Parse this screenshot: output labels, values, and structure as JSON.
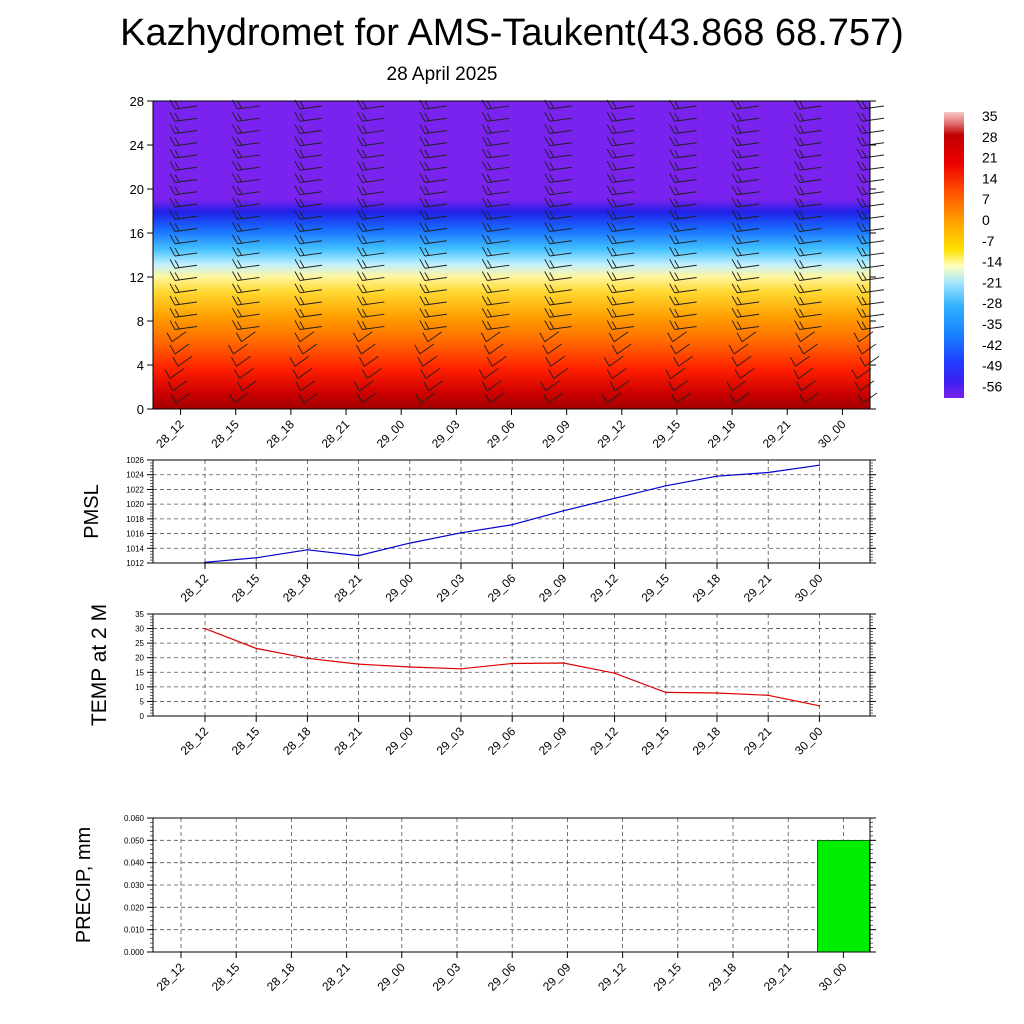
{
  "header": {
    "title": "Kazhydromet for AMS-Taukent(43.868 68.757)",
    "subtitle": "28 April 2025"
  },
  "colors": {
    "pmsl_line": "#0000cc",
    "temp_line": "#dd0000",
    "precip_bar": "#00ee00"
  },
  "chart_data": [
    {
      "type": "heatmap",
      "title": "",
      "xlabel": "",
      "ylabel": "",
      "x": [
        "28_12",
        "28_15",
        "28_18",
        "28_21",
        "29_00",
        "29_03",
        "29_06",
        "29_09",
        "29_12",
        "29_15",
        "29_18",
        "29_21",
        "30_00"
      ],
      "ylim": [
        0,
        28
      ],
      "y_ticks": [
        0,
        4,
        8,
        12,
        16,
        20,
        24,
        28
      ],
      "field": "temperature with wind barbs",
      "colorbar_ticks": [
        "35",
        "28",
        "21",
        "14",
        "7",
        "0",
        "-7",
        "-14",
        "-21",
        "-28",
        "-35",
        "-42",
        "-49",
        "-56"
      ],
      "approx_profile": [
        {
          "level": 0,
          "value": 28
        },
        {
          "level": 4,
          "value": 22
        },
        {
          "level": 8,
          "value": 10
        },
        {
          "level": 12,
          "value": -10
        },
        {
          "level": 14,
          "value": -20
        },
        {
          "level": 16,
          "value": -35
        },
        {
          "level": 18,
          "value": -50
        },
        {
          "level": 20,
          "value": -58
        },
        {
          "level": 28,
          "value": -58
        }
      ]
    },
    {
      "type": "line",
      "ylabel": "PMSL",
      "x": [
        "28_12",
        "28_15",
        "28_18",
        "28_21",
        "29_00",
        "29_03",
        "29_06",
        "29_09",
        "29_12",
        "29_15",
        "29_18",
        "29_21",
        "30_00"
      ],
      "ylim": [
        1012,
        1026
      ],
      "y_ticks": [
        1012,
        1014,
        1016,
        1018,
        1020,
        1022,
        1024,
        1026
      ],
      "grid": true,
      "series": [
        {
          "values": [
            1012.1,
            1012.7,
            1013.8,
            1013.0,
            1014.7,
            1016.1,
            1017.2,
            1019.1,
            1020.8,
            1022.5,
            1023.8,
            1024.3,
            1025.3
          ]
        }
      ]
    },
    {
      "type": "line",
      "ylabel": "TEMP at 2 M",
      "x": [
        "28_12",
        "28_15",
        "28_18",
        "28_21",
        "29_00",
        "29_03",
        "29_06",
        "29_09",
        "29_12",
        "29_15",
        "29_18",
        "29_21",
        "30_00"
      ],
      "ylim": [
        0,
        35
      ],
      "y_ticks": [
        0,
        5,
        10,
        15,
        20,
        25,
        30,
        35
      ],
      "grid": true,
      "series": [
        {
          "values": [
            30.0,
            23.2,
            19.8,
            17.8,
            16.8,
            16.2,
            18.0,
            18.2,
            14.7,
            8.1,
            7.9,
            7.1,
            3.5
          ]
        }
      ]
    },
    {
      "type": "bar",
      "ylabel": "PRECIP, mm",
      "categories": [
        "28_12",
        "28_15",
        "28_18",
        "28_21",
        "29_00",
        "29_03",
        "29_06",
        "29_09",
        "29_12",
        "29_15",
        "29_18",
        "29_21",
        "30_00"
      ],
      "ylim": [
        0,
        0.06
      ],
      "y_ticks": [
        "0.000",
        "0.010",
        "0.020",
        "0.030",
        "0.040",
        "0.050",
        "0.060"
      ],
      "grid": true,
      "values": [
        0,
        0,
        0,
        0,
        0,
        0,
        0,
        0,
        0,
        0,
        0,
        0,
        0.05
      ]
    }
  ]
}
